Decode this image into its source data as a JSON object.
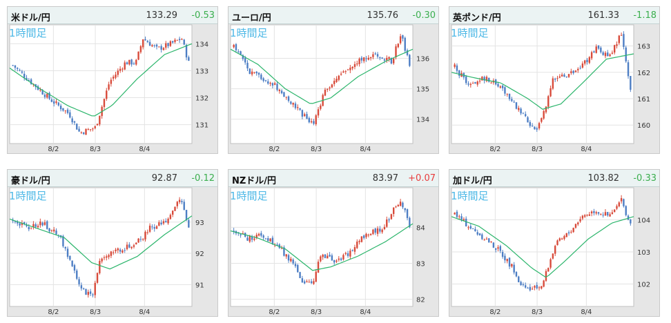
{
  "colors": {
    "up": "#d84a3a",
    "down": "#4d7ec4",
    "ma": "#2bb56b",
    "change_up": "#e83c3c",
    "change_down": "#3aae4d",
    "timeframe": "#4db8e6"
  },
  "panels": [
    {
      "pair": "米ドル/円",
      "price": "133.29",
      "change": "-0.53",
      "timeframe": "1時間足"
    },
    {
      "pair": "ユーロ/円",
      "price": "135.76",
      "change": "-0.30",
      "timeframe": "1時間足"
    },
    {
      "pair": "英ポンド/円",
      "price": "161.33",
      "change": "-1.18",
      "timeframe": "1時間足"
    },
    {
      "pair": "豪ドル/円",
      "price": "92.87",
      "change": "-0.12",
      "timeframe": "1時間足"
    },
    {
      "pair": "NZドル/円",
      "price": "83.97",
      "change": "+0.07",
      "timeframe": "1時間足"
    },
    {
      "pair": "加ドル/円",
      "price": "103.82",
      "change": "-0.33",
      "timeframe": "1時間足"
    }
  ],
  "chart_data": [
    {
      "type": "candlestick",
      "x_tick_labels": [
        "8/2",
        "8/3",
        "8/4"
      ],
      "y_tick_labels": [
        "131",
        "132",
        "133",
        "134"
      ],
      "ylim": [
        130.3,
        134.7
      ],
      "grid": true,
      "close_path": [
        [
          0,
          133.2
        ],
        [
          0.1,
          132.6
        ],
        [
          0.22,
          131.9
        ],
        [
          0.32,
          131.4
        ],
        [
          0.38,
          130.7
        ],
        [
          0.47,
          130.9
        ],
        [
          0.55,
          132.6
        ],
        [
          0.64,
          133.3
        ],
        [
          0.7,
          133.3
        ],
        [
          0.74,
          134.2
        ],
        [
          0.82,
          133.8
        ],
        [
          0.9,
          134.0
        ],
        [
          0.96,
          134.2
        ],
        [
          1.0,
          133.3
        ]
      ],
      "ma_path": [
        [
          0,
          133.1
        ],
        [
          0.15,
          132.4
        ],
        [
          0.32,
          131.7
        ],
        [
          0.46,
          131.3
        ],
        [
          0.56,
          131.7
        ],
        [
          0.7,
          132.7
        ],
        [
          0.85,
          133.6
        ],
        [
          1.0,
          134.0
        ]
      ]
    },
    {
      "type": "candlestick",
      "x_tick_labels": [
        "8/2",
        "8/3",
        "8/4"
      ],
      "y_tick_labels": [
        "134",
        "135",
        "136"
      ],
      "ylim": [
        133.2,
        137.1
      ],
      "grid": true,
      "close_path": [
        [
          0,
          136.4
        ],
        [
          0.1,
          135.5
        ],
        [
          0.22,
          135.2
        ],
        [
          0.3,
          134.7
        ],
        [
          0.38,
          134.2
        ],
        [
          0.45,
          133.8
        ],
        [
          0.52,
          135.0
        ],
        [
          0.62,
          135.5
        ],
        [
          0.72,
          136.0
        ],
        [
          0.83,
          136.1
        ],
        [
          0.9,
          135.9
        ],
        [
          0.95,
          136.8
        ],
        [
          1.0,
          135.8
        ]
      ],
      "ma_path": [
        [
          0,
          136.3
        ],
        [
          0.15,
          135.8
        ],
        [
          0.3,
          135.0
        ],
        [
          0.44,
          134.5
        ],
        [
          0.55,
          134.7
        ],
        [
          0.7,
          135.4
        ],
        [
          0.85,
          135.9
        ],
        [
          1.0,
          136.3
        ]
      ]
    },
    {
      "type": "candlestick",
      "x_tick_labels": [
        "8/2",
        "8/3",
        "8/4"
      ],
      "y_tick_labels": [
        "160",
        "161",
        "162",
        "163"
      ],
      "ylim": [
        159.3,
        163.8
      ],
      "grid": true,
      "close_path": [
        [
          0,
          162.2
        ],
        [
          0.08,
          161.5
        ],
        [
          0.18,
          161.8
        ],
        [
          0.27,
          161.4
        ],
        [
          0.35,
          160.7
        ],
        [
          0.42,
          160.1
        ],
        [
          0.47,
          159.8
        ],
        [
          0.5,
          160.3
        ],
        [
          0.56,
          161.7
        ],
        [
          0.65,
          161.9
        ],
        [
          0.73,
          162.3
        ],
        [
          0.8,
          162.9
        ],
        [
          0.88,
          162.6
        ],
        [
          0.95,
          163.5
        ],
        [
          1.0,
          161.3
        ]
      ],
      "ma_path": [
        [
          0,
          162.0
        ],
        [
          0.12,
          161.8
        ],
        [
          0.27,
          161.6
        ],
        [
          0.42,
          161.0
        ],
        [
          0.5,
          160.6
        ],
        [
          0.6,
          160.8
        ],
        [
          0.72,
          161.6
        ],
        [
          0.85,
          162.5
        ],
        [
          1.0,
          162.7
        ]
      ]
    },
    {
      "type": "candlestick",
      "x_tick_labels": [
        "8/2",
        "8/3",
        "8/4"
      ],
      "y_tick_labels": [
        "91",
        "92",
        "93"
      ],
      "ylim": [
        90.3,
        94.1
      ],
      "grid": true,
      "close_path": [
        [
          0,
          93.1
        ],
        [
          0.08,
          92.8
        ],
        [
          0.16,
          93.0
        ],
        [
          0.27,
          92.5
        ],
        [
          0.33,
          91.7
        ],
        [
          0.38,
          90.9
        ],
        [
          0.45,
          90.6
        ],
        [
          0.5,
          91.9
        ],
        [
          0.6,
          92.1
        ],
        [
          0.7,
          92.3
        ],
        [
          0.78,
          92.8
        ],
        [
          0.88,
          93.1
        ],
        [
          0.95,
          93.8
        ],
        [
          1.0,
          92.9
        ]
      ],
      "ma_path": [
        [
          0,
          93.1
        ],
        [
          0.15,
          92.8
        ],
        [
          0.3,
          92.5
        ],
        [
          0.45,
          91.7
        ],
        [
          0.55,
          91.5
        ],
        [
          0.7,
          91.9
        ],
        [
          0.85,
          92.6
        ],
        [
          1.0,
          93.2
        ]
      ]
    },
    {
      "type": "candlestick",
      "x_tick_labels": [
        "8/2",
        "8/3",
        "8/4"
      ],
      "y_tick_labels": [
        "82",
        "83",
        "84"
      ],
      "ylim": [
        81.8,
        85.1
      ],
      "grid": true,
      "close_path": [
        [
          0,
          83.9
        ],
        [
          0.08,
          83.7
        ],
        [
          0.16,
          83.8
        ],
        [
          0.26,
          83.4
        ],
        [
          0.34,
          83.0
        ],
        [
          0.4,
          82.4
        ],
        [
          0.45,
          82.5
        ],
        [
          0.5,
          83.3
        ],
        [
          0.58,
          83.0
        ],
        [
          0.66,
          83.3
        ],
        [
          0.75,
          83.8
        ],
        [
          0.85,
          84.0
        ],
        [
          0.95,
          84.8
        ],
        [
          1.0,
          84.0
        ]
      ],
      "ma_path": [
        [
          0,
          83.9
        ],
        [
          0.15,
          83.7
        ],
        [
          0.3,
          83.4
        ],
        [
          0.45,
          82.8
        ],
        [
          0.55,
          82.9
        ],
        [
          0.7,
          83.2
        ],
        [
          0.85,
          83.6
        ],
        [
          1.0,
          84.1
        ]
      ]
    },
    {
      "type": "candlestick",
      "x_tick_labels": [
        "8/2",
        "8/3",
        "8/4"
      ],
      "y_tick_labels": [
        "102",
        "103",
        "104"
      ],
      "ylim": [
        101.3,
        105.0
      ],
      "grid": true,
      "close_path": [
        [
          0,
          104.2
        ],
        [
          0.1,
          103.7
        ],
        [
          0.18,
          103.4
        ],
        [
          0.26,
          103.0
        ],
        [
          0.33,
          102.5
        ],
        [
          0.38,
          101.9
        ],
        [
          0.44,
          101.8
        ],
        [
          0.5,
          102.0
        ],
        [
          0.57,
          103.2
        ],
        [
          0.65,
          103.6
        ],
        [
          0.72,
          104.1
        ],
        [
          0.8,
          104.3
        ],
        [
          0.88,
          104.1
        ],
        [
          0.95,
          104.6
        ],
        [
          1.0,
          103.8
        ]
      ],
      "ma_path": [
        [
          0,
          104.1
        ],
        [
          0.15,
          103.8
        ],
        [
          0.3,
          103.2
        ],
        [
          0.44,
          102.5
        ],
        [
          0.52,
          102.2
        ],
        [
          0.62,
          102.7
        ],
        [
          0.75,
          103.4
        ],
        [
          0.88,
          103.9
        ],
        [
          1.0,
          104.1
        ]
      ]
    }
  ]
}
